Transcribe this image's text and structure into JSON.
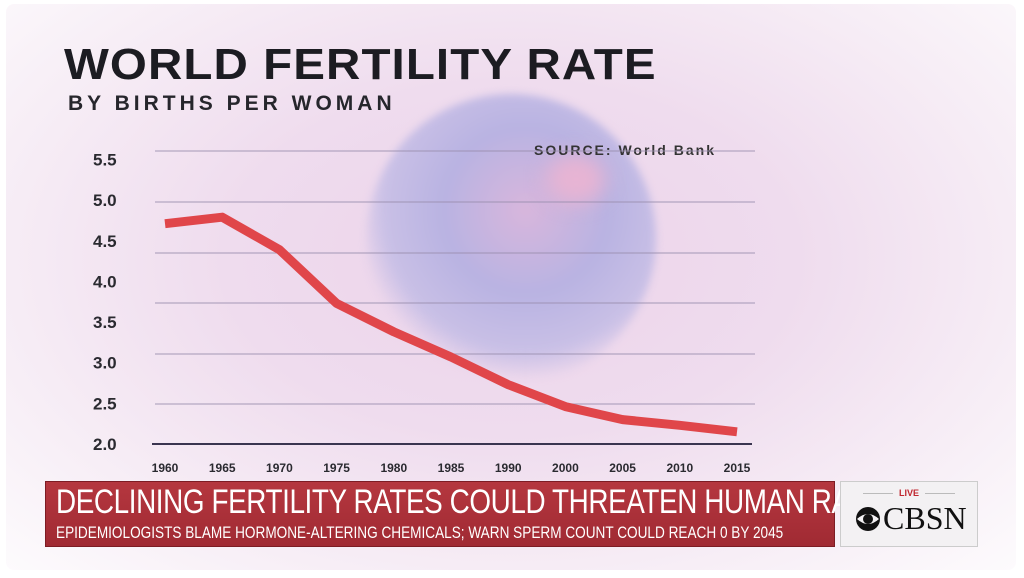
{
  "header": {
    "title": "WORLD FERTILITY RATE",
    "subtitle": "BY BIRTHS PER WOMAN",
    "source": "SOURCE: World Bank"
  },
  "chart_data": {
    "type": "line",
    "title": "WORLD FERTILITY RATE",
    "subtitle": "BY BIRTHS PER WOMAN",
    "categories": [
      "1960",
      "1965",
      "1970",
      "1975",
      "1980",
      "1985",
      "1990",
      "2000",
      "2005",
      "2010",
      "2015"
    ],
    "series": [
      {
        "values": [
          4.71,
          4.79,
          4.39,
          3.73,
          3.38,
          3.07,
          2.73,
          2.46,
          2.3,
          2.23,
          2.15
        ],
        "color": "#e0464a"
      }
    ],
    "yticks": [
      "5.5",
      "5.0",
      "4.5",
      "4.0",
      "3.5",
      "3.0",
      "2.5",
      "2.0"
    ],
    "ylim": [
      2.0,
      5.5
    ],
    "grid": true,
    "annotation": "SOURCE: World Bank"
  },
  "banner": {
    "headline": "DECLINING FERTILITY RATES COULD THREATEN HUMAN RACE",
    "subline": "EPIDEMIOLOGISTS BLAME HORMONE-ALTERING CHEMICALS; WARN SPERM COUNT COULD REACH 0 BY 2045",
    "color": "#a8303a"
  },
  "logo": {
    "live": "LIVE",
    "brand": "CBSN",
    "icon": "cbs-eye-icon"
  }
}
